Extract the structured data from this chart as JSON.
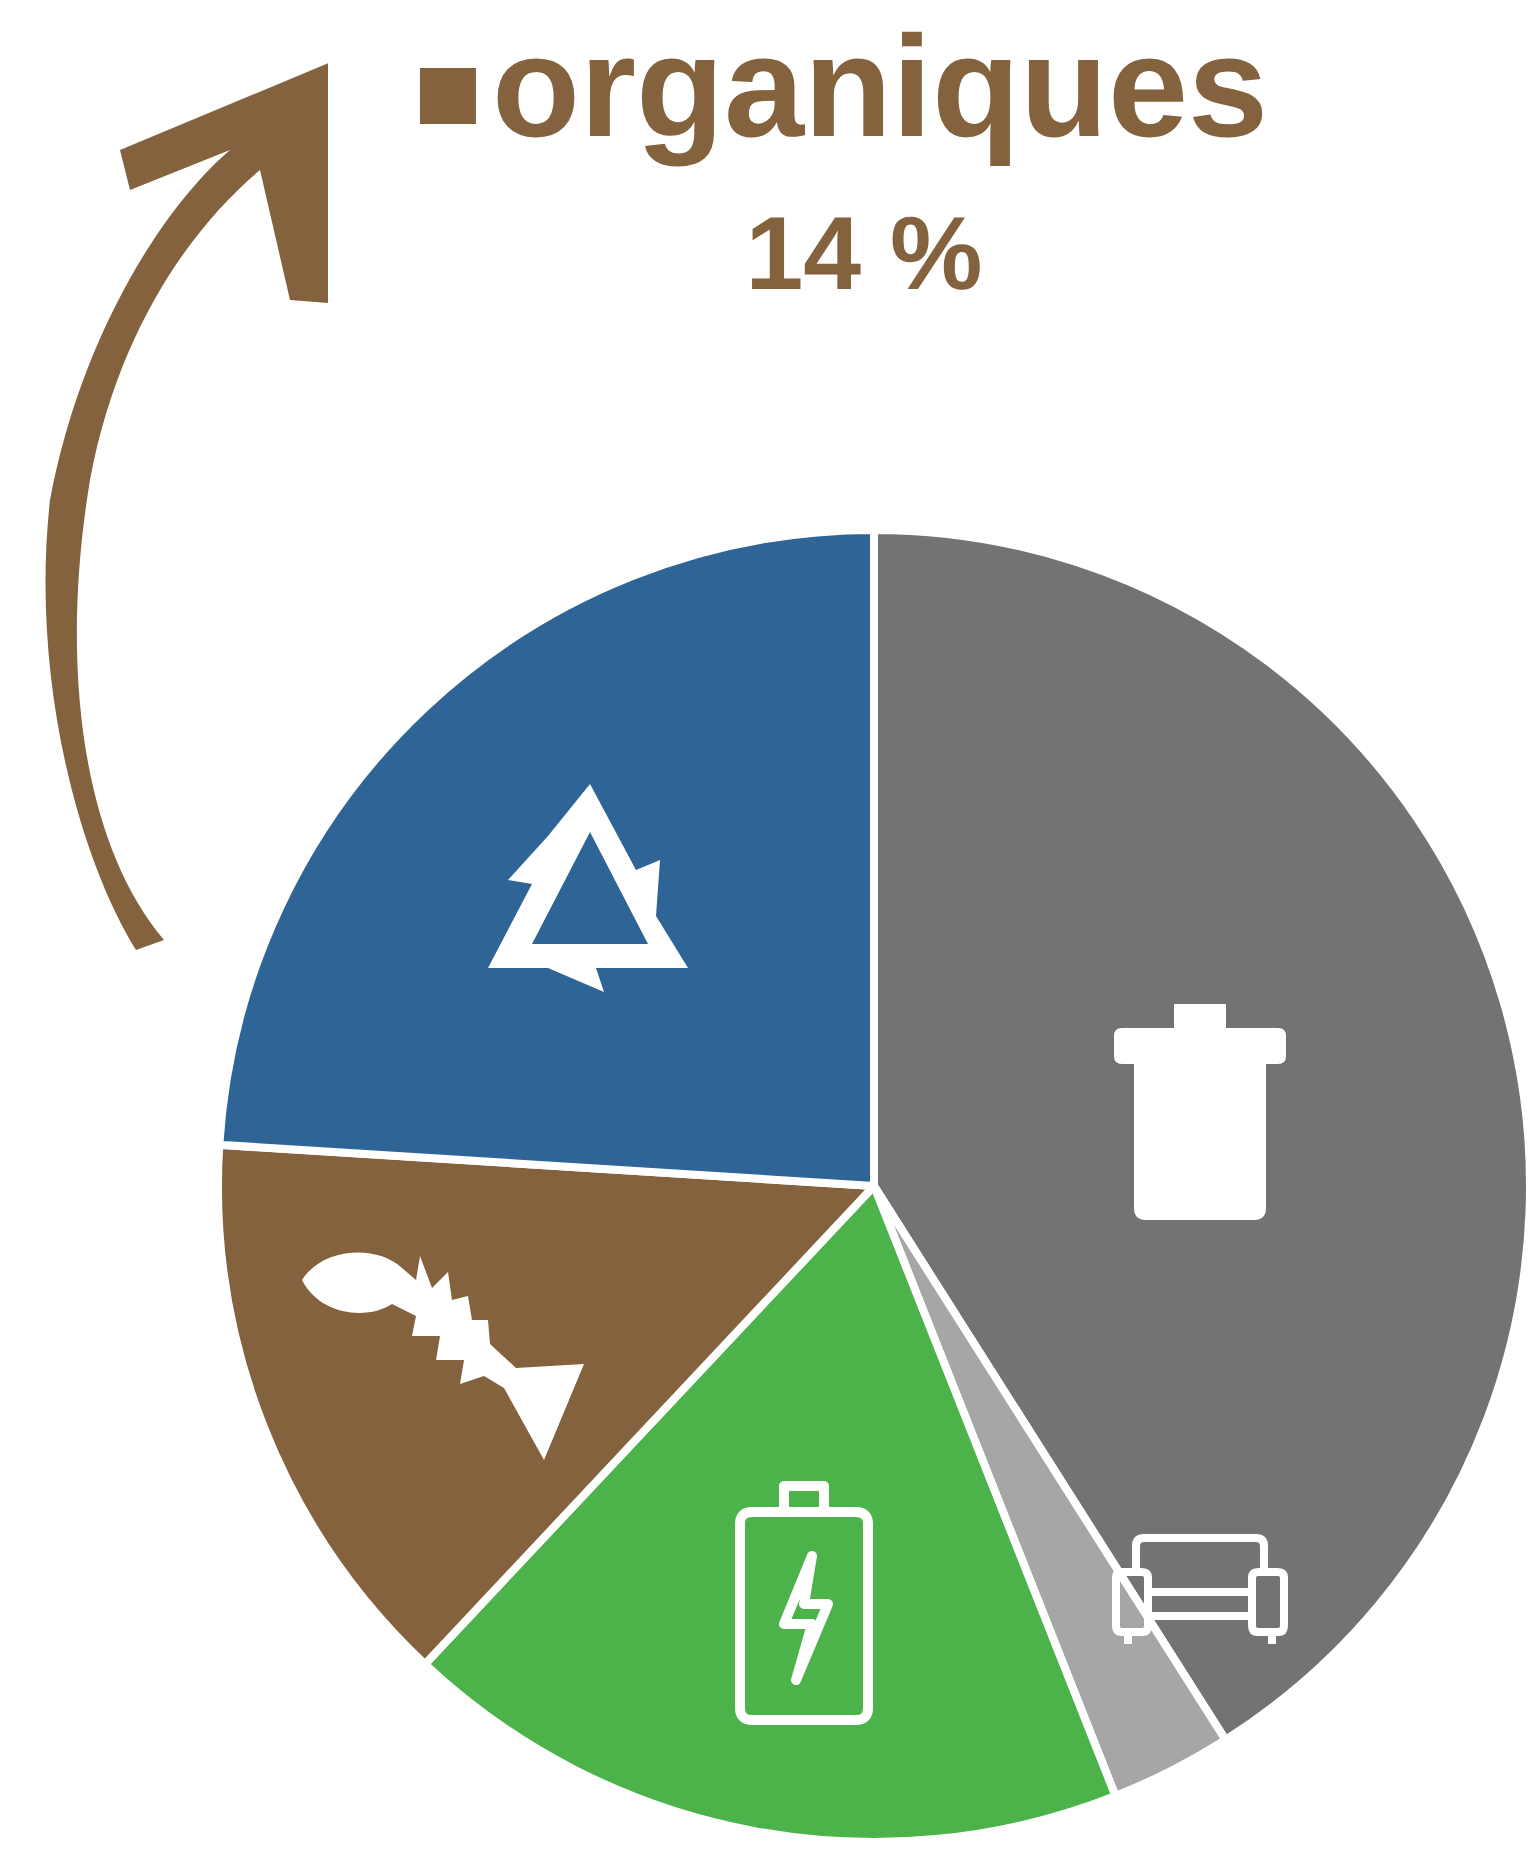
{
  "chart_data": {
    "type": "pie",
    "categories": [
      null,
      null,
      null,
      "organiques",
      null
    ],
    "values": [
      41,
      3,
      18,
      14,
      24
    ],
    "colors": [
      "#737373",
      "#a6a6a6",
      "#4bb34a",
      "#83623d",
      "#2e6496"
    ],
    "value_labels": [
      null,
      null,
      null,
      "14 %",
      null
    ]
  }
}
